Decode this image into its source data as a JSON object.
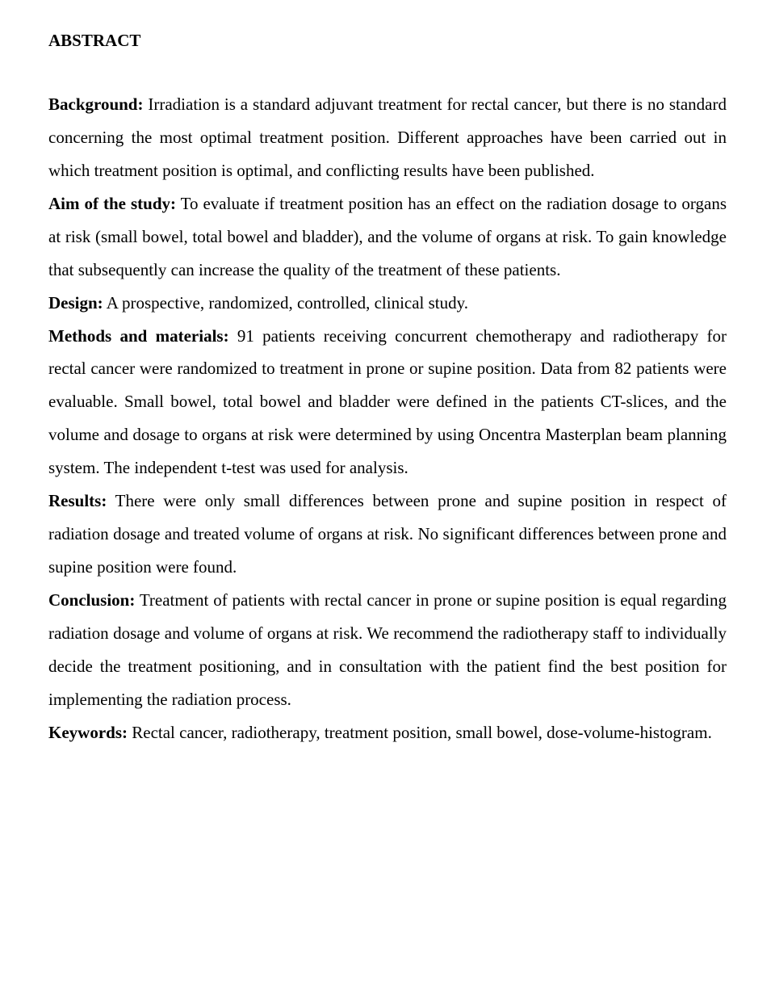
{
  "title": "ABSTRACT",
  "labels": {
    "background": "Background:",
    "aim": "Aim of the study:",
    "design": "Design:",
    "methods": "Methods and materials:",
    "results": "Results:",
    "conclusion": "Conclusion:",
    "keywords": "Keywords:"
  },
  "text": {
    "background": " Irradiation is a standard adjuvant treatment for rectal cancer, but there is no standard concerning the most optimal treatment position. Different approaches have been carried out in which treatment position is optimal, and conflicting results have been published.",
    "aim": " To evaluate if treatment position has an effect on the radiation dosage to organs at risk (small bowel, total bowel and bladder), and the volume of organs at risk. To gain knowledge that subsequently can increase the quality of the treatment of these patients.",
    "design": " A prospective, randomized, controlled, clinical study.",
    "methods": " 91 patients receiving concurrent chemotherapy and radiotherapy for rectal cancer were randomized to treatment in prone or supine position. Data from 82 patients were evaluable. Small bowel, total bowel and bladder were defined in the patients CT-slices, and the volume and dosage to organs at risk were determined by using Oncentra Masterplan beam planning system. The independent t-test was used for analysis.",
    "results": " There were only small differences between prone and supine position in respect of radiation dosage and treated volume of organs at risk. No significant differences between prone and supine position were found.",
    "conclusion": " Treatment of patients with rectal cancer in prone or supine position is equal regarding radiation dosage and volume of organs at risk. We recommend the radiotherapy staff to individually decide the treatment positioning, and in consultation with the patient find the best position for implementing the radiation process.",
    "keywords": " Rectal cancer, radiotherapy, treatment position, small bowel, dose-volume-histogram."
  }
}
